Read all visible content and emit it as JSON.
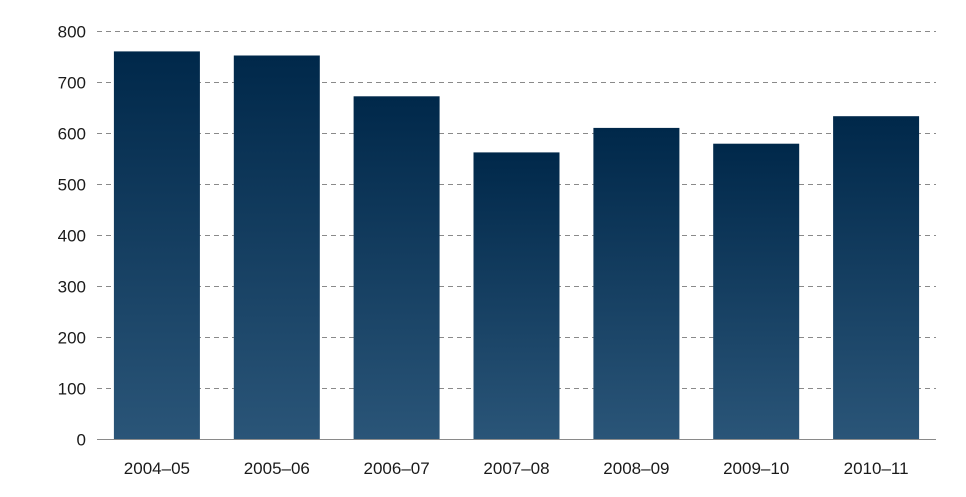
{
  "chart_data": {
    "type": "bar",
    "title": "",
    "xlabel": "",
    "ylabel": "",
    "categories": [
      "2004–05",
      "2005–06",
      "2006–07",
      "2007–08",
      "2008–09",
      "2009–10",
      "2010–11"
    ],
    "values": [
      760,
      752,
      672,
      562,
      610,
      579,
      633
    ],
    "ylim": [
      0,
      800
    ],
    "yticks": [
      0,
      100,
      200,
      300,
      400,
      500,
      600,
      700,
      800
    ],
    "grid": true,
    "legend": "none",
    "colors": {
      "bar_top": "#00284a",
      "bar_bottom": "#2a5578",
      "grid": "#8a8a8a",
      "text": "#1a1a1a"
    }
  }
}
